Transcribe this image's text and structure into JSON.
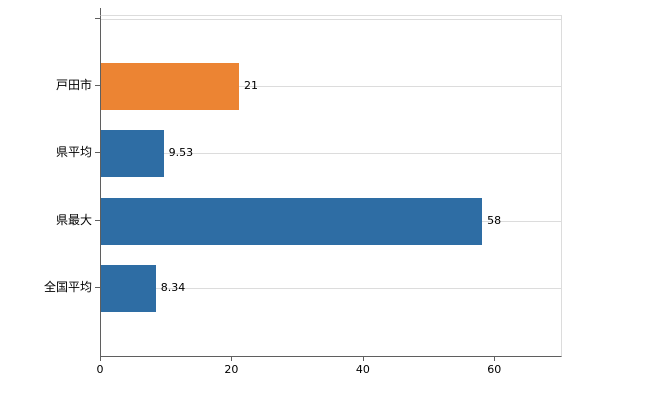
{
  "chart_data": {
    "type": "bar",
    "orientation": "horizontal",
    "title": "",
    "xlabel": "",
    "ylabel": "",
    "categories": [
      "戸田市",
      "県平均",
      "県最大",
      "全国平均"
    ],
    "values": [
      21,
      9.53,
      58,
      8.34
    ],
    "value_labels": [
      "21",
      "9.53",
      "58",
      "8.34"
    ],
    "series": [
      {
        "name": "",
        "values": [
          21,
          9.53,
          58,
          8.34
        ],
        "colors": [
          "#ec8433",
          "#2e6da4",
          "#2e6da4",
          "#2e6da4"
        ]
      }
    ],
    "xlim": [
      0,
      70
    ],
    "xticks": [
      0,
      20,
      40,
      60
    ],
    "xtick_labels": [
      "0",
      "20",
      "40",
      "60"
    ],
    "grid": "horizontal-category-gridlines",
    "legend_position": "none"
  },
  "colors": {
    "bar_orange": "#ec8433",
    "bar_blue": "#2e6da4",
    "gridline": "#dcdcdc",
    "axis": "#5f5f5f",
    "background": "#ffffff",
    "text": "#000000"
  }
}
